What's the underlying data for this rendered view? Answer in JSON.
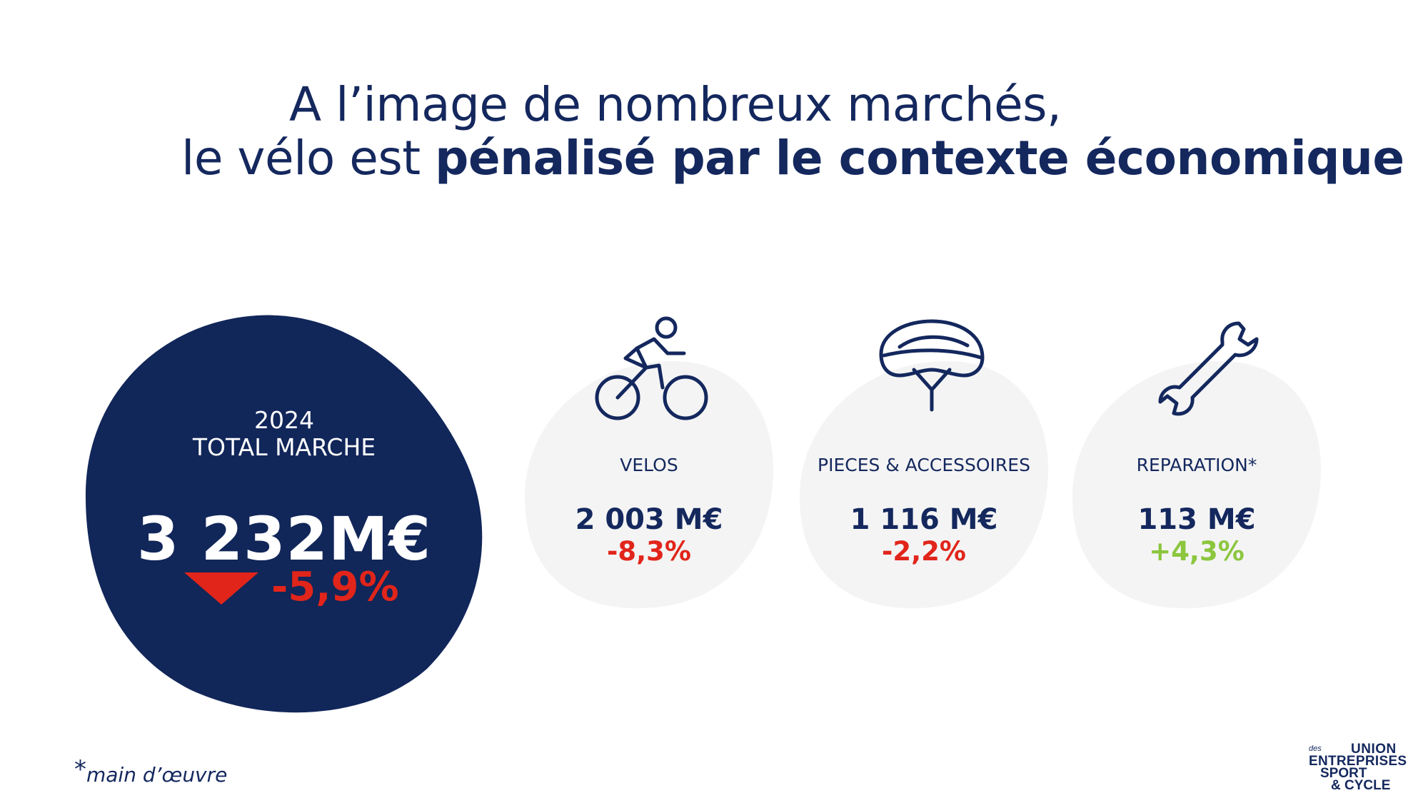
{
  "title": {
    "line1": "A l’image de nombreux marchés,",
    "line2_prefix": "le vélo est ",
    "line2_bold": "pénalisé par le contexte économique"
  },
  "total": {
    "year": "2024",
    "label": "TOTAL MARCHE",
    "value": "3 232M€",
    "change": "-5,9%",
    "trend_icon": "triangle-down-icon"
  },
  "segments": [
    {
      "icon": "cyclist-icon",
      "label": "VELOS",
      "value": "2 003 M€",
      "change": "-8,3%",
      "change_color": "#e1251b"
    },
    {
      "icon": "helmet-icon",
      "label": "PIECES & ACCESSOIRES",
      "value": "1 116 M€",
      "change": "-2,2%",
      "change_color": "#e1251b"
    },
    {
      "icon": "wrench-icon",
      "label": "REPARATION*",
      "value": "113 M€",
      "change": "+4,3%",
      "change_color": "#8cc63f"
    }
  ],
  "footnote": {
    "star": "*",
    "text": "main d’œuvre"
  },
  "logo": {
    "des": "des",
    "line1": "UNION",
    "line2": "ENTREPRISES",
    "line3": "SPORT",
    "line4": "& CYCLE"
  },
  "colors": {
    "navy": "#14285e",
    "red": "#e1251b",
    "green": "#8cc63f",
    "blob_grey": "#f4f4f4"
  }
}
